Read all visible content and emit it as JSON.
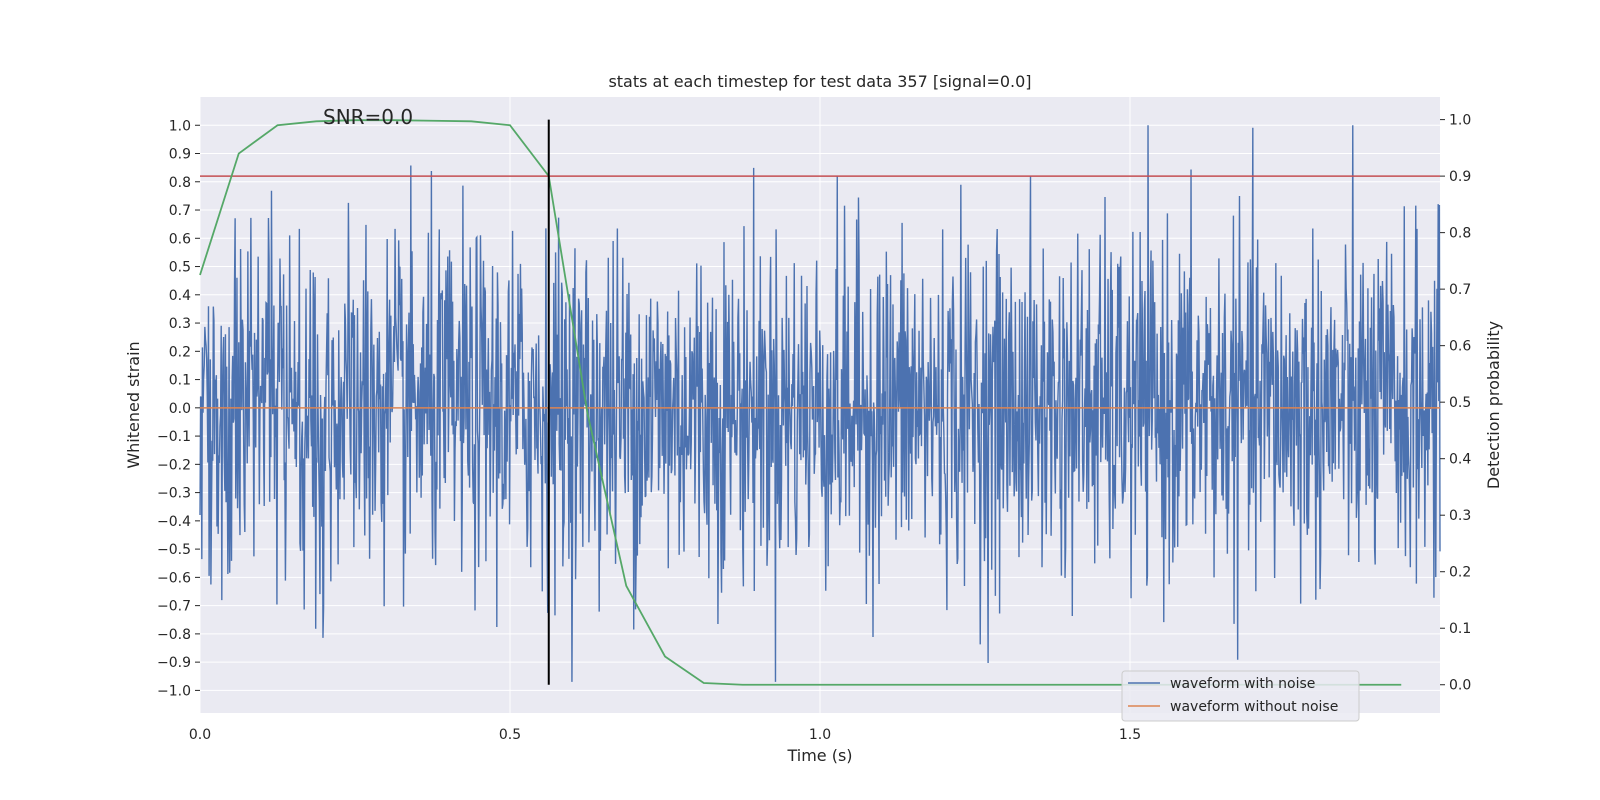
{
  "chart_data": {
    "type": "line",
    "title": "stats at each timestep for test data 357 [signal=0.0]",
    "annotation": "SNR=0.0",
    "xlabel": "Time (s)",
    "ylabel": "Whitened strain",
    "y2label": "Detection probability",
    "xlim": [
      0.0,
      2.0
    ],
    "ylim": [
      -1.08,
      1.1
    ],
    "y2lim": [
      -0.05,
      1.04
    ],
    "xticks": [
      0.0,
      0.5,
      1.0,
      1.5
    ],
    "xtick_labels": [
      "0.0",
      "0.5",
      "1.0",
      "1.5"
    ],
    "yticks": [
      -1.0,
      -0.9,
      -0.8,
      -0.7,
      -0.6,
      -0.5,
      -0.4,
      -0.3,
      -0.2,
      -0.1,
      0.0,
      0.1,
      0.2,
      0.3,
      0.4,
      0.5,
      0.6,
      0.7,
      0.8,
      0.9,
      1.0
    ],
    "ytick_labels": [
      "−1.0",
      "−0.9",
      "−0.8",
      "−0.7",
      "−0.6",
      "−0.5",
      "−0.4",
      "−0.3",
      "−0.2",
      "−0.1",
      "0.0",
      "0.1",
      "0.2",
      "0.3",
      "0.4",
      "0.5",
      "0.6",
      "0.7",
      "0.8",
      "0.9",
      "1.0"
    ],
    "y2ticks": [
      0.0,
      0.1,
      0.2,
      0.3,
      0.4,
      0.5,
      0.6,
      0.7,
      0.8,
      0.9,
      1.0
    ],
    "y2tick_labels": [
      "0.0",
      "0.1",
      "0.2",
      "0.3",
      "0.4",
      "0.5",
      "0.6",
      "0.7",
      "0.8",
      "0.9",
      "1.0"
    ],
    "grid": true,
    "legend_position": "bottom-right",
    "threshold": {
      "axis": "y2",
      "value": 0.9,
      "color": "#c44e52"
    },
    "vline": {
      "x": 0.5625,
      "color": "#000000"
    },
    "series": [
      {
        "name": "waveform with noise",
        "axis": "y1",
        "color": "#4c72b0",
        "kind": "noise",
        "x_start": 0.0,
        "x_end": 2.0,
        "n_samples": 2048,
        "approx_range": [
          -0.97,
          1.0
        ]
      },
      {
        "name": "waveform without noise",
        "axis": "y1",
        "color": "#dd8452",
        "x": [
          0.0,
          2.0
        ],
        "y": [
          0.0,
          0.0
        ]
      },
      {
        "name": "detection probability",
        "axis": "y2",
        "color": "#55a868",
        "x": [
          0.0,
          0.0625,
          0.125,
          0.1875,
          0.25,
          0.3125,
          0.375,
          0.4375,
          0.5,
          0.5625,
          0.625,
          0.6875,
          0.75,
          0.8125,
          0.875,
          0.9375,
          1.0,
          1.0625,
          1.125,
          1.1875,
          1.25,
          1.3125,
          1.375,
          1.4375,
          1.5,
          1.5625,
          1.625,
          1.6875,
          1.75,
          1.8125,
          1.875,
          1.9375
        ],
        "y": [
          0.725,
          0.94,
          0.99,
          0.997,
          0.999,
          0.999,
          0.998,
          0.997,
          0.99,
          0.9,
          0.48,
          0.175,
          0.05,
          0.003,
          0.0,
          0.0,
          0.0,
          0.0,
          0.0,
          0.0,
          0.0,
          0.0,
          0.0,
          0.0,
          0.0,
          0.0,
          0.0,
          0.0,
          0.0,
          0.0,
          0.0,
          0.0
        ]
      }
    ],
    "colors": {
      "background": "#eaeaf2",
      "grid": "#ffffff"
    }
  }
}
